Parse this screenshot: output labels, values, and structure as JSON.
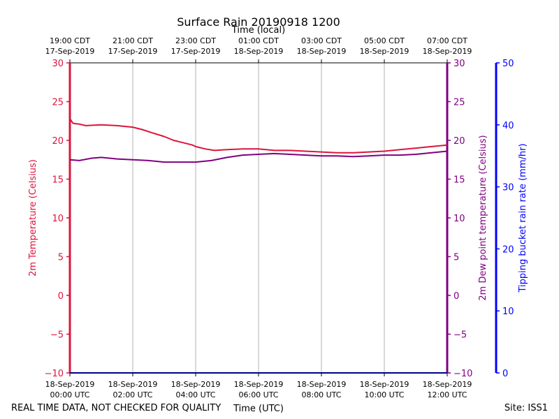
{
  "title": "Surface Rain 20190918 1200",
  "top_axis_label": "Time (local)",
  "bottom_axis_label": "Time (UTC)",
  "footer_left": "REAL TIME DATA, NOT CHECKED FOR QUALITY",
  "footer_right": "Site: ISS1",
  "colors": {
    "temperature": "#dc143c",
    "dewpoint": "#800080",
    "rain_axis": "#0000ff",
    "grid": "#b0b0b0"
  },
  "chart_data": {
    "type": "line",
    "title": "Surface Rain 20190918 1200",
    "grid": true,
    "x_range_utc": [
      "2019-09-18 00:00",
      "2019-09-18 12:00"
    ],
    "bottom_ticks": [
      {
        "date": "18-Sep-2019",
        "time": "00:00 UTC"
      },
      {
        "date": "18-Sep-2019",
        "time": "02:00 UTC"
      },
      {
        "date": "18-Sep-2019",
        "time": "04:00 UTC"
      },
      {
        "date": "18-Sep-2019",
        "time": "06:00 UTC"
      },
      {
        "date": "18-Sep-2019",
        "time": "08:00 UTC"
      },
      {
        "date": "18-Sep-2019",
        "time": "10:00 UTC"
      },
      {
        "date": "18-Sep-2019",
        "time": "12:00 UTC"
      }
    ],
    "top_ticks": [
      {
        "time": "19:00 CDT",
        "date": "17-Sep-2019"
      },
      {
        "time": "21:00 CDT",
        "date": "17-Sep-2019"
      },
      {
        "time": "23:00 CDT",
        "date": "17-Sep-2019"
      },
      {
        "time": "01:00 CDT",
        "date": "18-Sep-2019"
      },
      {
        "time": "03:00 CDT",
        "date": "18-Sep-2019"
      },
      {
        "time": "05:00 CDT",
        "date": "18-Sep-2019"
      },
      {
        "time": "07:00 CDT",
        "date": "18-Sep-2019"
      }
    ],
    "left_axis": {
      "label": "2m Temperature (Celsius)",
      "ylim": [
        -10,
        30
      ],
      "ticks": [
        "30",
        "25",
        "20",
        "15",
        "10",
        "5",
        "0",
        "−5",
        "−10"
      ]
    },
    "right_axis": {
      "label": "2m Dew point temperature (Celsius)",
      "ylim": [
        -10,
        30
      ],
      "ticks": [
        "30",
        "25",
        "20",
        "15",
        "10",
        "5",
        "0",
        "−5",
        "−10"
      ]
    },
    "rain_axis": {
      "label": "Tipping bucket rain rate (mm/hr)",
      "ylim": [
        0,
        50
      ],
      "ticks": [
        "50",
        "40",
        "30",
        "20",
        "10",
        "0"
      ]
    },
    "series": [
      {
        "name": "2m Temperature (Celsius)",
        "axis": "left",
        "hours": [
          0,
          0.1,
          0.3,
          0.5,
          1.0,
          1.5,
          2.0,
          2.3,
          2.6,
          3.0,
          3.3,
          3.6,
          3.9,
          4.0,
          4.3,
          4.6,
          5.0,
          5.5,
          6.0,
          6.5,
          7.0,
          7.5,
          8.0,
          8.5,
          9.0,
          9.5,
          10.0,
          10.5,
          11.0,
          11.5,
          12.0
        ],
        "values": [
          22.8,
          22.2,
          22.1,
          21.9,
          22.0,
          21.9,
          21.7,
          21.4,
          21.0,
          20.5,
          20.0,
          19.7,
          19.4,
          19.2,
          18.9,
          18.7,
          18.8,
          18.9,
          18.9,
          18.7,
          18.7,
          18.6,
          18.5,
          18.4,
          18.4,
          18.5,
          18.6,
          18.8,
          19.0,
          19.2,
          19.4
        ]
      },
      {
        "name": "2m Dew point temperature (Celsius)",
        "axis": "right",
        "hours": [
          0,
          0.3,
          0.7,
          1.0,
          1.5,
          2.0,
          2.5,
          3.0,
          3.5,
          4.0,
          4.5,
          5.0,
          5.5,
          6.0,
          6.5,
          7.0,
          7.5,
          8.0,
          8.5,
          9.0,
          9.5,
          10.0,
          10.5,
          11.0,
          11.5,
          12.0
        ],
        "values": [
          17.5,
          17.4,
          17.7,
          17.8,
          17.6,
          17.5,
          17.4,
          17.2,
          17.2,
          17.2,
          17.4,
          17.8,
          18.1,
          18.2,
          18.3,
          18.2,
          18.1,
          18.0,
          18.0,
          17.9,
          18.0,
          18.1,
          18.1,
          18.2,
          18.4,
          18.6
        ]
      }
    ]
  }
}
